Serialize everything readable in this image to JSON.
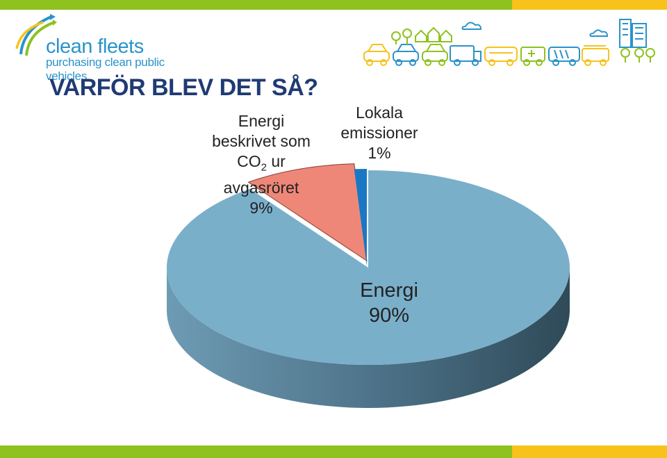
{
  "brand": {
    "name": "clean fleets",
    "tagline": "purchasing clean public vehicles"
  },
  "colors": {
    "top_bar_green": "#8dc21f",
    "top_bar_yellow": "#f7c21a",
    "title": "#1f3b74",
    "brand_blue": "#2a93c9"
  },
  "header": {
    "title": "VARFÖR BLEV DET SÅ?"
  },
  "chart_data": {
    "type": "pie",
    "style": "3d",
    "title": "",
    "slices": [
      {
        "label_lines": [
          "Energi"
        ],
        "value": 90,
        "value_label": "90%",
        "color": "#7aafca",
        "side_dark": "#35505e"
      },
      {
        "label_lines": [
          "Energi",
          "beskrivet som",
          "CO",
          "avgasröret"
        ],
        "co2_sub": "2",
        "co2_suffix": " ur",
        "value": 9,
        "value_label": "9%",
        "color": "#ee8778",
        "side_dark": "#a05045"
      },
      {
        "label_lines": [
          "Lokala",
          "emissioner"
        ],
        "value": 1,
        "value_label": "1%",
        "color": "#1878c4",
        "side_dark": "#0e4f85"
      }
    ]
  }
}
